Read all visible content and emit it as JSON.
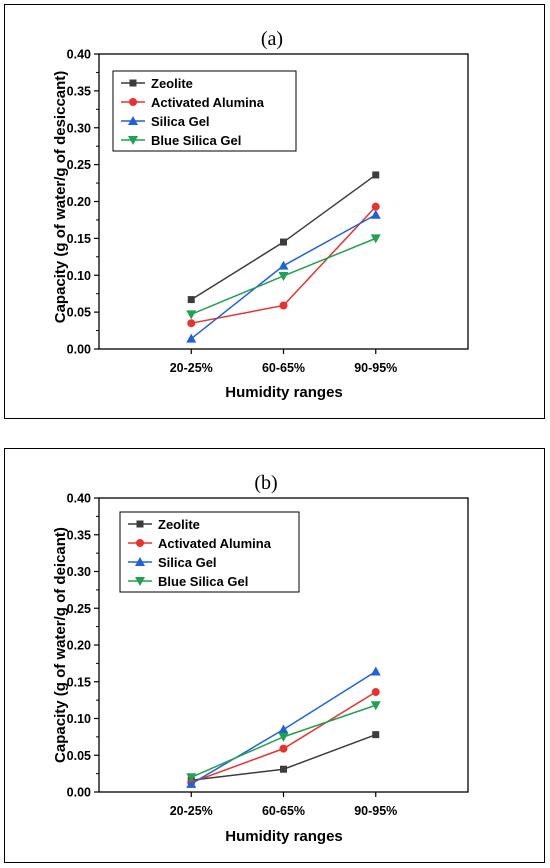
{
  "chart_data": [
    {
      "type": "line",
      "panel_label": "(a)",
      "title": "",
      "xlabel": "Humidity ranges",
      "ylabel": "Capacity (g of water/g of desiccant)",
      "categories": [
        "20-25%",
        "60-65%",
        "90-95%"
      ],
      "ylim": [
        0,
        0.4
      ],
      "yticks": [
        "0.00",
        "0.05",
        "0.10",
        "0.15",
        "0.20",
        "0.25",
        "0.30",
        "0.35",
        "0.40"
      ],
      "grid": false,
      "legend_position": "top-left",
      "series": [
        {
          "name": "Zeolite",
          "values": [
            0.067,
            0.145,
            0.236
          ],
          "color": "#3c3c3c",
          "marker": "square"
        },
        {
          "name": "Activated Alumina",
          "values": [
            0.035,
            0.059,
            0.193
          ],
          "color": "#e8322e",
          "marker": "circle"
        },
        {
          "name": "Silica Gel",
          "values": [
            0.014,
            0.113,
            0.182
          ],
          "color": "#1f63d6",
          "marker": "triangle-up"
        },
        {
          "name": "Blue Silica Gel",
          "values": [
            0.047,
            0.099,
            0.15
          ],
          "color": "#21a152",
          "marker": "triangle-down"
        }
      ]
    },
    {
      "type": "line",
      "panel_label": "(b)",
      "title": "",
      "xlabel": "Humidity ranges",
      "ylabel": "Capacity (g of water/g of deicant)",
      "categories": [
        "20-25%",
        "60-65%",
        "90-95%"
      ],
      "ylim": [
        0,
        0.4
      ],
      "yticks": [
        "0.00",
        "0.05",
        "0.10",
        "0.15",
        "0.20",
        "0.25",
        "0.30",
        "0.35",
        "0.40"
      ],
      "grid": false,
      "legend_position": "top-center",
      "series": [
        {
          "name": "Zeolite",
          "values": [
            0.016,
            0.031,
            0.078
          ],
          "color": "#3c3c3c",
          "marker": "square"
        },
        {
          "name": "Activated Alumina",
          "values": [
            0.013,
            0.059,
            0.136
          ],
          "color": "#e8322e",
          "marker": "circle"
        },
        {
          "name": "Silica Gel",
          "values": [
            0.011,
            0.085,
            0.164
          ],
          "color": "#1f63d6",
          "marker": "triangle-up"
        },
        {
          "name": "Blue Silica Gel",
          "values": [
            0.02,
            0.075,
            0.118
          ],
          "color": "#21a152",
          "marker": "triangle-down"
        }
      ]
    }
  ]
}
